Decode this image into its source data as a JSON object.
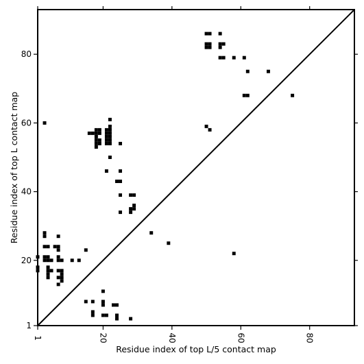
{
  "chart_data": {
    "type": "scatter",
    "title": "",
    "xlabel": "Residue index of top L/5 contact map",
    "ylabel": "Residue index of top L contact map",
    "xlim": [
      1,
      93
    ],
    "ylim": [
      1,
      93
    ],
    "xticks": [
      1,
      20,
      40,
      60,
      80
    ],
    "yticks": [
      1,
      20,
      40,
      60,
      80
    ],
    "xtick_labels": [
      "1",
      "20",
      "40",
      "60",
      "80"
    ],
    "ytick_labels": [
      "1",
      "20",
      "40",
      "60",
      "80"
    ],
    "diagonal": true,
    "grid": false,
    "point_color": "#000000",
    "upper_points": [
      [
        50,
        86
      ],
      [
        51,
        86
      ],
      [
        54,
        86
      ],
      [
        50,
        83
      ],
      [
        51,
        83
      ],
      [
        50,
        82
      ],
      [
        51,
        82
      ],
      [
        54,
        83
      ],
      [
        55,
        83
      ],
      [
        54,
        82
      ],
      [
        54,
        79
      ],
      [
        55,
        79
      ],
      [
        58,
        79
      ],
      [
        61,
        79
      ],
      [
        62,
        75
      ],
      [
        68,
        75
      ],
      [
        61,
        68
      ],
      [
        62,
        68
      ],
      [
        75,
        68
      ],
      [
        50,
        59
      ],
      [
        51,
        58
      ],
      [
        3,
        60
      ],
      [
        22,
        61
      ],
      [
        16,
        57
      ],
      [
        17,
        57
      ],
      [
        18,
        58
      ],
      [
        19,
        58
      ],
      [
        18,
        57
      ],
      [
        19,
        57
      ],
      [
        18,
        56
      ],
      [
        18,
        55
      ],
      [
        19,
        55
      ],
      [
        18,
        54
      ],
      [
        19,
        54
      ],
      [
        18,
        53
      ],
      [
        21,
        58
      ],
      [
        22,
        58
      ],
      [
        21,
        57
      ],
      [
        22,
        57
      ],
      [
        21,
        56
      ],
      [
        22,
        56
      ],
      [
        21,
        55
      ],
      [
        22,
        55
      ],
      [
        21,
        54
      ],
      [
        22,
        54
      ],
      [
        22,
        59
      ],
      [
        25,
        54
      ],
      [
        22,
        50
      ],
      [
        21,
        46
      ],
      [
        25,
        46
      ],
      [
        24,
        43
      ],
      [
        25,
        43
      ],
      [
        25,
        39
      ],
      [
        28,
        39
      ],
      [
        29,
        39
      ],
      [
        29,
        36
      ],
      [
        28,
        35
      ],
      [
        29,
        35
      ],
      [
        28,
        34
      ],
      [
        25,
        34
      ]
    ],
    "lower_points": [
      [
        34,
        28
      ],
      [
        39,
        25
      ],
      [
        58,
        22
      ],
      [
        3,
        28
      ],
      [
        3,
        27
      ],
      [
        7,
        27
      ],
      [
        3,
        24
      ],
      [
        4,
        24
      ],
      [
        6,
        24
      ],
      [
        7,
        24
      ],
      [
        7,
        23
      ],
      [
        15,
        23
      ],
      [
        1,
        21
      ],
      [
        3,
        21
      ],
      [
        4,
        21
      ],
      [
        7,
        21
      ],
      [
        3,
        20
      ],
      [
        4,
        20
      ],
      [
        5,
        20
      ],
      [
        7,
        20
      ],
      [
        8,
        20
      ],
      [
        11,
        20
      ],
      [
        13,
        20
      ],
      [
        1,
        18
      ],
      [
        4,
        18
      ],
      [
        1,
        17
      ],
      [
        4,
        17
      ],
      [
        5,
        17
      ],
      [
        7,
        17
      ],
      [
        8,
        17
      ],
      [
        4,
        16
      ],
      [
        8,
        16
      ],
      [
        4,
        15
      ],
      [
        7,
        15
      ],
      [
        8,
        15
      ],
      [
        8,
        14
      ],
      [
        7,
        13
      ],
      [
        20,
        11
      ],
      [
        15,
        8
      ],
      [
        17,
        8
      ],
      [
        20,
        8
      ],
      [
        20,
        7
      ],
      [
        23,
        7
      ],
      [
        24,
        7
      ],
      [
        17,
        5
      ],
      [
        17,
        4
      ],
      [
        20,
        4
      ],
      [
        21,
        4
      ],
      [
        24,
        4
      ],
      [
        24,
        3
      ],
      [
        28,
        3
      ]
    ]
  }
}
